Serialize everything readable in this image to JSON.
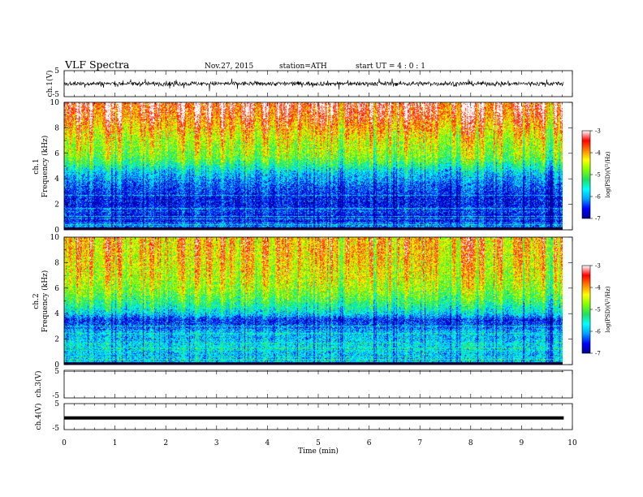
{
  "header": {
    "title": "VLF  Spectra",
    "date": "Nov.27, 2015",
    "station": "station=ATH",
    "start": "start  UT  =   4 : 0  : 1"
  },
  "chart_data": [
    {
      "type": "line",
      "name": "ch.1",
      "ylabel": "ch.1(V)",
      "ylim": [
        -5,
        5
      ],
      "yticks": [
        "5",
        "-5"
      ],
      "xlim": [
        0,
        10
      ],
      "trace": "broadband noise waveform, amplitude approx ±1.5 V with sporadic spikes to ±2.5 V",
      "data_extent_min": [
        0,
        9.83
      ]
    },
    {
      "type": "heatmap",
      "name": "ch.1 spectrogram",
      "ylabel_channel": "ch.1",
      "ylabel": "Frequency  (kHz)",
      "ylim": [
        0,
        10
      ],
      "yticks": [
        "0",
        "2",
        "4",
        "6",
        "8",
        "10"
      ],
      "xlim": [
        0,
        10
      ],
      "colorbar": {
        "label": "log(PSD)(V²/Hz)",
        "range": [
          -7,
          -3
        ],
        "ticks": [
          "-3",
          "-4",
          "-5",
          "-6",
          "-7"
        ]
      },
      "profile": {
        "freq_khz": [
          0,
          0.5,
          1,
          1.5,
          2,
          2.5,
          3,
          3.5,
          4,
          4.5,
          5,
          5.5,
          6,
          7,
          8,
          9,
          10
        ],
        "log_psd": [
          -5.8,
          -6.6,
          -6.7,
          -6.6,
          -6.7,
          -6.7,
          -6.5,
          -6.4,
          -6.2,
          -6.0,
          -5.6,
          -5.2,
          -5.0,
          -4.8,
          -4.4,
          -4.0,
          -3.8
        ]
      },
      "data_extent_min": [
        0,
        9.83
      ]
    },
    {
      "type": "heatmap",
      "name": "ch.2 spectrogram",
      "ylabel_channel": "ch.2",
      "ylabel": "Frequency  (kHz)",
      "ylim": [
        0,
        10
      ],
      "yticks": [
        "0",
        "2",
        "4",
        "6",
        "8",
        "10"
      ],
      "xlim": [
        0,
        10
      ],
      "colorbar": {
        "label": "log(PSD)(V²/Hz)",
        "range": [
          -7,
          -3
        ],
        "ticks": [
          "-3",
          "-4",
          "-5",
          "-6",
          "-7"
        ]
      },
      "profile": {
        "freq_khz": [
          0,
          0.5,
          1,
          1.5,
          2,
          2.5,
          3,
          3.5,
          4,
          4.5,
          5,
          5.5,
          6,
          7,
          8,
          9,
          10
        ],
        "log_psd": [
          -5.8,
          -6.0,
          -5.9,
          -5.8,
          -6.0,
          -6.0,
          -6.4,
          -6.6,
          -5.9,
          -5.6,
          -5.3,
          -5.1,
          -4.9,
          -4.7,
          -4.6,
          -4.5,
          -4.5
        ]
      },
      "data_extent_min": [
        0,
        9.83
      ]
    },
    {
      "type": "line",
      "name": "ch.3",
      "ylabel": "ch.3(V)",
      "ylim": [
        -5,
        5
      ],
      "yticks": [
        "5",
        "-5"
      ],
      "xlim": [
        0,
        10
      ],
      "level_v": 4.6,
      "data_extent_min": [
        0,
        9.83
      ]
    },
    {
      "type": "line",
      "name": "ch.4",
      "ylabel": "ch.4(V)",
      "ylim": [
        -5,
        5
      ],
      "yticks": [
        "5",
        "-5"
      ],
      "xlim": [
        0,
        10
      ],
      "level_v": -0.5,
      "data_extent_min": [
        0,
        9.83
      ]
    }
  ],
  "x_axis": {
    "label": "Time  (min)",
    "ticks": [
      "0",
      "1",
      "2",
      "3",
      "4",
      "5",
      "6",
      "7",
      "8",
      "9",
      "10"
    ]
  },
  "colors": {
    "scale": [
      "#000090",
      "#0000ff",
      "#00a0ff",
      "#00ffff",
      "#20e060",
      "#80ff00",
      "#ffff00",
      "#ff8000",
      "#ff0000",
      "#ffffff"
    ],
    "trace": "#000000"
  }
}
